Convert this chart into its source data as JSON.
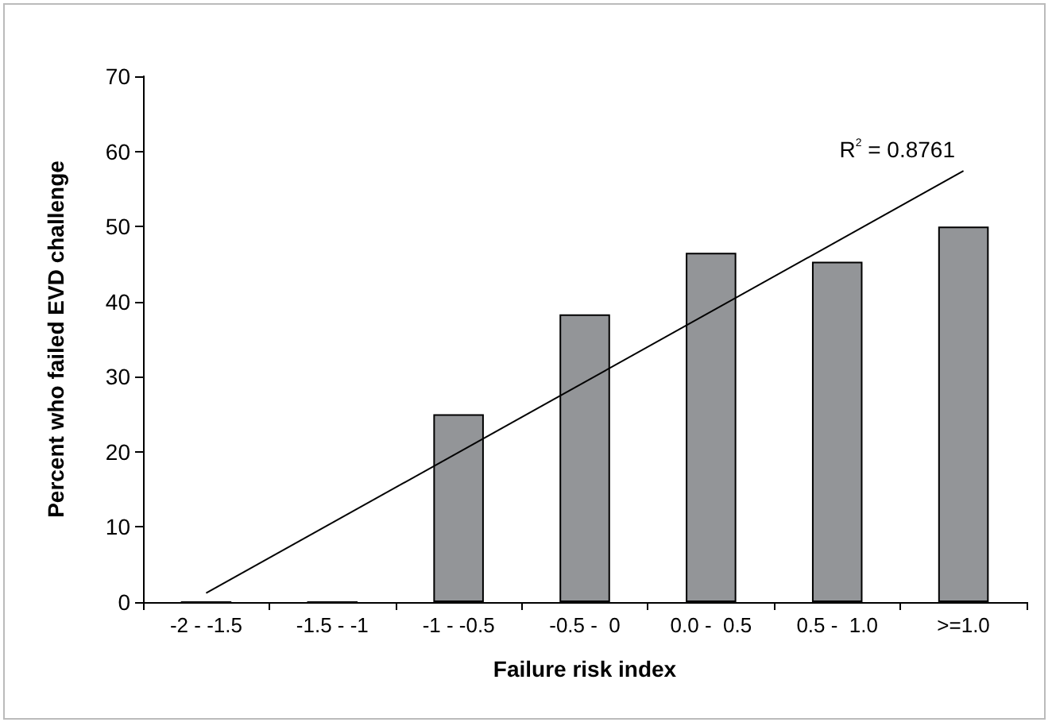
{
  "chart_data": {
    "type": "bar",
    "categories": [
      "-2 - -1.5",
      "-1.5 - -1",
      "-1 - -0.5",
      "-0.5 -  0",
      "0.0 -  0.5",
      "0.5 -  1.0",
      ">=1.0"
    ],
    "series": [
      {
        "color": "#939598",
        "values": [
          0,
          0,
          25,
          38.3,
          46.5,
          45.3,
          50
        ]
      },
      {
        "type": "line",
        "color": "#000000",
        "x": [
          "-2 - -1.5",
          ">=1.0"
        ],
        "values": [
          1.2,
          57.4
        ]
      }
    ],
    "xlabel": "Failure risk index",
    "ylabel": "Percent who failed EVD challenge",
    "ylim": [
      0,
      70
    ],
    "yticks": [
      0,
      10,
      20,
      30,
      40,
      50,
      60,
      70
    ],
    "annotations": [
      "R$^{2}$ = 0.8761"
    ],
    "grid": false,
    "marker": "none",
    "line_style": "solid"
  }
}
